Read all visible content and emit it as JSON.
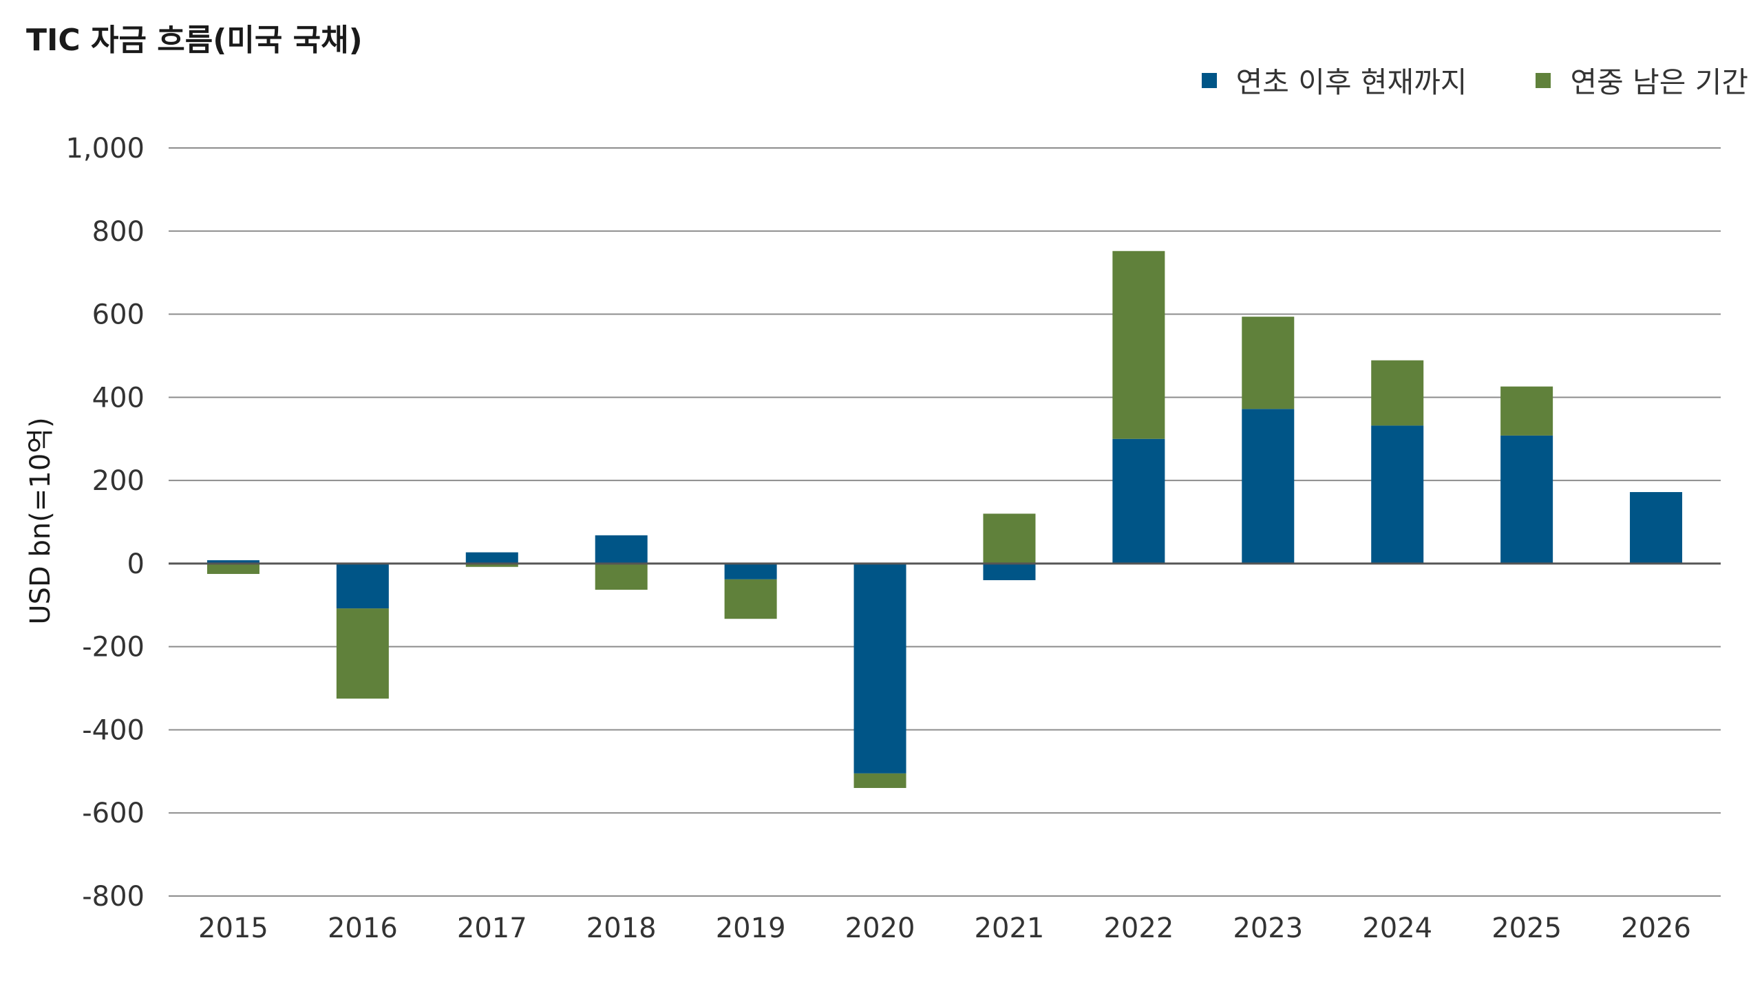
{
  "chart_data": {
    "type": "bar",
    "stacked": true,
    "title": "TIC 자금 흐름(미국 국채)",
    "xlabel": "",
    "ylabel": "USD bn(=10억)",
    "categories": [
      "2015",
      "2016",
      "2017",
      "2018",
      "2019",
      "2020",
      "2021",
      "2022",
      "2023",
      "2024",
      "2025",
      "2026"
    ],
    "series": [
      {
        "name": "연초 이후 현재까지",
        "color": "#005587",
        "values": [
          8,
          -108,
          27,
          68,
          -38,
          -505,
          -40,
          300,
          372,
          332,
          308,
          172
        ]
      },
      {
        "name": "연중 남은 기간",
        "color": "#60813B",
        "values": [
          -25,
          -217,
          -8,
          -63,
          -95,
          -35,
          120,
          452,
          222,
          157,
          118,
          0
        ]
      }
    ],
    "ylim": [
      -800,
      1000
    ],
    "yticks": [
      -800,
      -600,
      -400,
      -200,
      0,
      200,
      400,
      600,
      800,
      1000
    ],
    "ytick_labels": [
      "-800",
      "-600",
      "-400",
      "-200",
      "0",
      "200",
      "400",
      "600",
      "800",
      "1,000"
    ],
    "grid": true,
    "legend_position": "top-right"
  }
}
